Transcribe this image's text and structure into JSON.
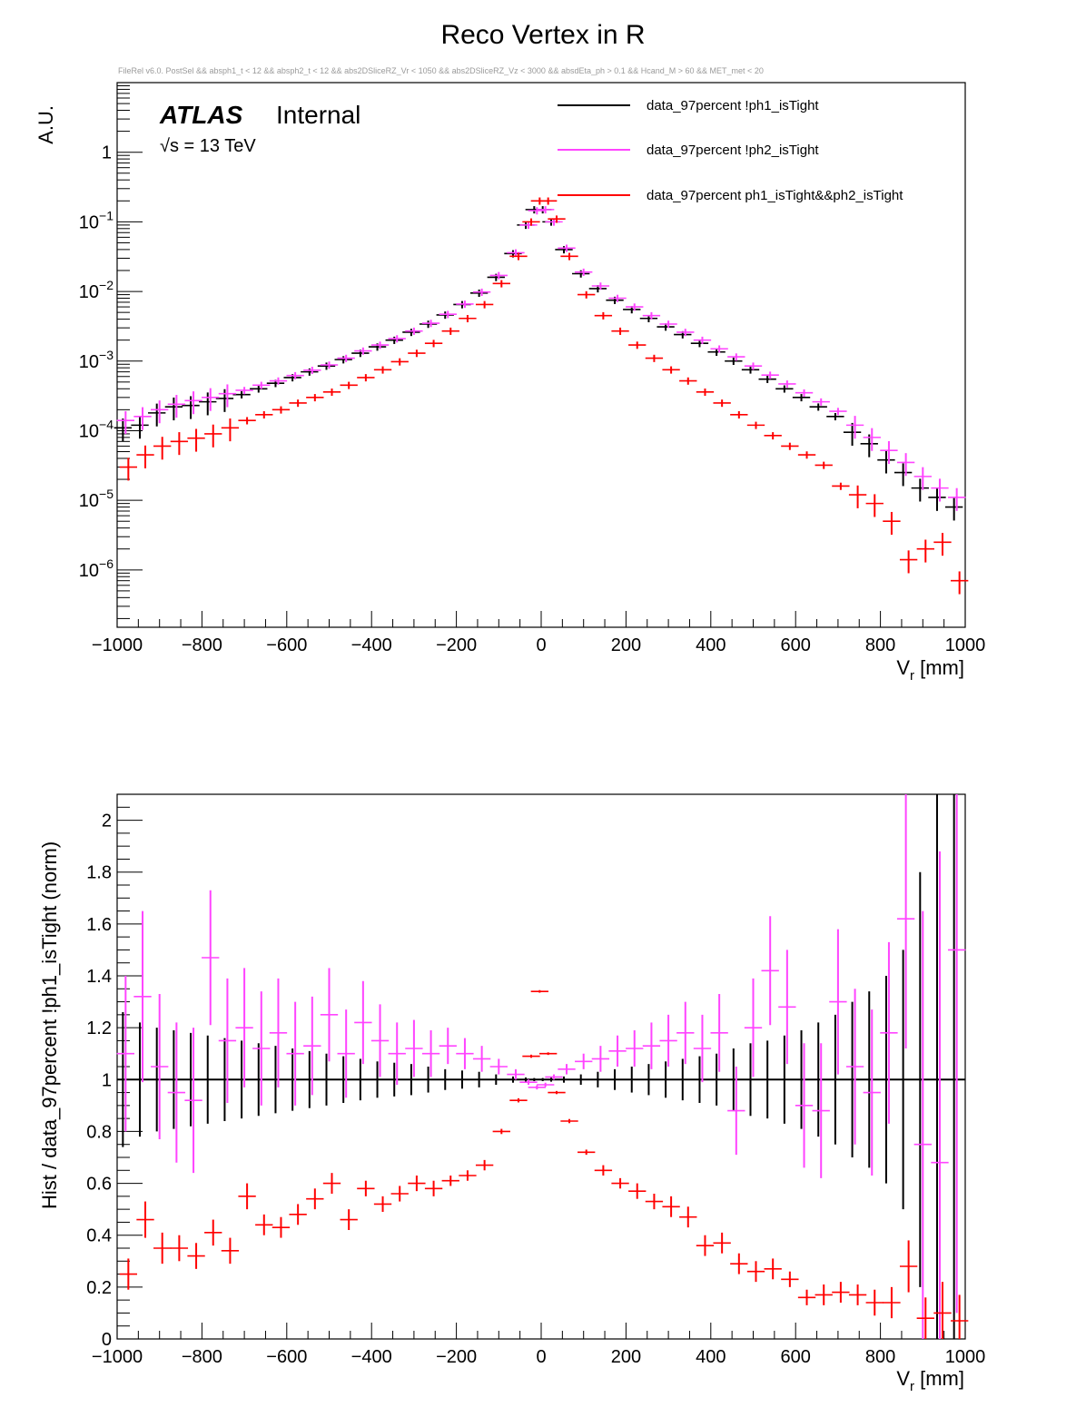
{
  "title": "Reco Vertex in R",
  "selection_text": "FileRel v6.0. PostSel &&  absph1_t < 12 && absph2_t < 12 && abs2DSliceRZ_Vr < 1050 && abs2DSliceRZ_Vz < 3000 && absdEta_ph > 0.1 && Hcand_M > 60 && MET_met < 20",
  "atlas_label": "ATLAS",
  "atlas_status": "Internal",
  "energy_label": "√s = 13 TeV",
  "colors": {
    "black": "#000000",
    "magenta": "#ff44ff",
    "red": "#ff0000"
  },
  "chart_data": [
    {
      "type": "scatter",
      "name": "top-panel",
      "xlabel": "V_r [mm]",
      "ylabel": "A.U.",
      "xlim": [
        -1000,
        1000
      ],
      "ylim": [
        1.5e-07,
        10
      ],
      "yscale": "log",
      "x_ticks": [
        -1000,
        -800,
        -600,
        -400,
        -200,
        0,
        200,
        400,
        600,
        800,
        1000
      ],
      "y_ticks": [
        {
          "value": 1,
          "label": "1"
        },
        {
          "value": 0.1,
          "label": "10",
          "exp": "−1"
        },
        {
          "value": 0.01,
          "label": "10",
          "exp": "−2"
        },
        {
          "value": 0.001,
          "label": "10",
          "exp": "−3"
        },
        {
          "value": 0.0001,
          "label": "10",
          "exp": "−4"
        },
        {
          "value": 1e-05,
          "label": "10",
          "exp": "−5"
        },
        {
          "value": 1e-06,
          "label": "10",
          "exp": "−6"
        }
      ],
      "legend": [
        {
          "label": "data_97percent !ph1_isTight",
          "color": "#000000"
        },
        {
          "label": "data_97percent !ph2_isTight",
          "color": "#ff44ff"
        },
        {
          "label": "data_97percent ph1_isTight&&ph2_isTight",
          "color": "#ff0000"
        }
      ],
      "series": [
        {
          "name": "data_97percent !ph1_isTight",
          "color": "#000000",
          "x": [
            -980,
            -940,
            -900,
            -860,
            -820,
            -780,
            -740,
            -700,
            -660,
            -620,
            -580,
            -540,
            -500,
            -460,
            -420,
            -380,
            -340,
            -300,
            -260,
            -220,
            -180,
            -140,
            -100,
            -60,
            -30,
            -10,
            10,
            30,
            60,
            100,
            140,
            180,
            220,
            260,
            300,
            340,
            380,
            420,
            460,
            500,
            540,
            580,
            620,
            660,
            700,
            740,
            780,
            820,
            860,
            900,
            940,
            980
          ],
          "y": [
            0.00011,
            0.00012,
            0.00018,
            0.00022,
            0.00023,
            0.00026,
            0.00029,
            0.00033,
            0.0004,
            0.00048,
            0.00058,
            0.0007,
            0.00085,
            0.00105,
            0.0013,
            0.0016,
            0.002,
            0.0026,
            0.0034,
            0.0046,
            0.0065,
            0.0095,
            0.016,
            0.035,
            0.09,
            0.15,
            0.15,
            0.1,
            0.04,
            0.018,
            0.011,
            0.0075,
            0.0055,
            0.0041,
            0.0031,
            0.0024,
            0.0018,
            0.00135,
            0.001,
            0.00075,
            0.00055,
            0.0004,
            0.0003,
            0.00022,
            0.00016,
            9.5e-05,
            6.5e-05,
            3.8e-05,
            2.5e-05,
            1.5e-05,
            1.1e-05,
            8e-06
          ]
        },
        {
          "name": "data_97percent !ph2_isTight",
          "color": "#ff44ff",
          "x": [
            -980,
            -940,
            -900,
            -860,
            -820,
            -780,
            -740,
            -700,
            -660,
            -620,
            -580,
            -540,
            -500,
            -460,
            -420,
            -380,
            -340,
            -300,
            -260,
            -220,
            -180,
            -140,
            -100,
            -60,
            -30,
            -10,
            10,
            30,
            60,
            100,
            140,
            180,
            220,
            260,
            300,
            340,
            380,
            420,
            460,
            500,
            540,
            580,
            620,
            660,
            700,
            740,
            780,
            820,
            860,
            900,
            940,
            980
          ],
          "y": [
            0.00014,
            0.00016,
            0.0002,
            0.00024,
            0.00027,
            0.0003,
            0.00034,
            0.00038,
            0.00045,
            0.00052,
            0.00062,
            0.00074,
            0.00088,
            0.0011,
            0.0014,
            0.0017,
            0.0021,
            0.0027,
            0.0035,
            0.0047,
            0.0066,
            0.0098,
            0.017,
            0.036,
            0.09,
            0.145,
            0.15,
            0.1,
            0.042,
            0.019,
            0.012,
            0.008,
            0.006,
            0.0045,
            0.0034,
            0.0026,
            0.002,
            0.0015,
            0.00115,
            0.00085,
            0.00063,
            0.00047,
            0.00035,
            0.00026,
            0.00019,
            0.00012,
            8e-05,
            5.2e-05,
            3.5e-05,
            2.2e-05,
            1.5e-05,
            1.1e-05
          ]
        },
        {
          "name": "data_97percent ph1_isTight&&ph2_isTight",
          "color": "#ff0000",
          "x": [
            -980,
            -940,
            -900,
            -860,
            -820,
            -780,
            -740,
            -700,
            -660,
            -620,
            -580,
            -540,
            -500,
            -460,
            -420,
            -380,
            -340,
            -300,
            -260,
            -220,
            -180,
            -140,
            -100,
            -60,
            -30,
            -10,
            10,
            30,
            60,
            100,
            140,
            180,
            220,
            260,
            300,
            340,
            380,
            420,
            460,
            500,
            540,
            580,
            620,
            660,
            700,
            740,
            780,
            820,
            860,
            900,
            940,
            980
          ],
          "y": [
            3e-05,
            4.5e-05,
            6e-05,
            7e-05,
            7.8e-05,
            9e-05,
            0.00011,
            0.00014,
            0.00017,
            0.0002,
            0.00025,
            0.0003,
            0.00036,
            0.00045,
            0.00058,
            0.00075,
            0.00098,
            0.0013,
            0.0018,
            0.0027,
            0.0041,
            0.0065,
            0.013,
            0.032,
            0.1,
            0.2,
            0.2,
            0.11,
            0.032,
            0.009,
            0.0045,
            0.0027,
            0.0017,
            0.0011,
            0.00075,
            0.00052,
            0.00036,
            0.00025,
            0.00017,
            0.00012,
            8.5e-05,
            6e-05,
            4.5e-05,
            3.2e-05,
            1.6e-05,
            1.2e-05,
            9e-06,
            5e-06,
            1.4e-06,
            2e-06,
            2.5e-06,
            7e-07
          ]
        }
      ]
    },
    {
      "type": "scatter",
      "name": "ratio-panel",
      "xlabel": "V_r [mm]",
      "ylabel": "Hist / data_97percent !ph1_isTight (norm)",
      "xlim": [
        -1000,
        1000
      ],
      "ylim": [
        0,
        2.1
      ],
      "x_ticks": [
        -1000,
        -800,
        -600,
        -400,
        -200,
        0,
        200,
        400,
        600,
        800,
        1000
      ],
      "y_ticks": [
        {
          "value": 0,
          "label": "0"
        },
        {
          "value": 0.2,
          "label": "0.2"
        },
        {
          "value": 0.4,
          "label": "0.4"
        },
        {
          "value": 0.6,
          "label": "0.6"
        },
        {
          "value": 0.8,
          "label": "0.8"
        },
        {
          "value": 1,
          "label": "1"
        },
        {
          "value": 1.2,
          "label": "1.2"
        },
        {
          "value": 1.4,
          "label": "1.4"
        },
        {
          "value": 1.6,
          "label": "1.6"
        },
        {
          "value": 1.8,
          "label": "1.8"
        },
        {
          "value": 2,
          "label": "2"
        }
      ],
      "series": [
        {
          "name": "data_97percent !ph1_isTight",
          "color": "#000000",
          "x": [
            -980,
            -940,
            -900,
            -860,
            -820,
            -780,
            -740,
            -700,
            -660,
            -620,
            -580,
            -540,
            -500,
            -460,
            -420,
            -380,
            -340,
            -300,
            -260,
            -220,
            -180,
            -140,
            -100,
            -60,
            -30,
            -10,
            10,
            30,
            60,
            100,
            140,
            180,
            220,
            260,
            300,
            340,
            380,
            420,
            460,
            500,
            540,
            580,
            620,
            660,
            700,
            740,
            780,
            820,
            860,
            900,
            940,
            980
          ],
          "y": [
            1,
            1,
            1,
            1,
            1,
            1,
            1,
            1,
            1,
            1,
            1,
            1,
            1,
            1,
            1,
            1,
            1,
            1,
            1,
            1,
            1,
            1,
            1,
            1,
            1,
            1,
            1,
            1,
            1,
            1,
            1,
            1,
            1,
            1,
            1,
            1,
            1,
            1,
            1,
            1,
            1,
            1,
            1,
            1,
            1,
            1,
            1,
            1,
            1,
            1,
            1,
            1
          ],
          "err": [
            0.26,
            0.22,
            0.2,
            0.19,
            0.18,
            0.17,
            0.16,
            0.15,
            0.14,
            0.13,
            0.12,
            0.11,
            0.1,
            0.09,
            0.08,
            0.07,
            0.065,
            0.06,
            0.05,
            0.04,
            0.035,
            0.03,
            0.02,
            0.012,
            0.008,
            0.006,
            0.006,
            0.008,
            0.012,
            0.02,
            0.03,
            0.04,
            0.05,
            0.06,
            0.07,
            0.08,
            0.09,
            0.1,
            0.12,
            0.14,
            0.15,
            0.17,
            0.19,
            0.22,
            0.25,
            0.3,
            0.34,
            0.4,
            0.5,
            0.8,
            1.1,
            1.2
          ]
        },
        {
          "name": "data_97percent !ph2_isTight",
          "color": "#ff44ff",
          "x": [
            -980,
            -940,
            -900,
            -860,
            -820,
            -780,
            -740,
            -700,
            -660,
            -620,
            -580,
            -540,
            -500,
            -460,
            -420,
            -380,
            -340,
            -300,
            -260,
            -220,
            -180,
            -140,
            -100,
            -60,
            -30,
            -10,
            10,
            30,
            60,
            100,
            140,
            180,
            220,
            260,
            300,
            340,
            380,
            420,
            460,
            500,
            540,
            580,
            620,
            660,
            700,
            740,
            780,
            820,
            860,
            900,
            940,
            980
          ],
          "y": [
            1.1,
            1.32,
            1.05,
            0.95,
            0.92,
            1.47,
            1.15,
            1.2,
            1.12,
            1.18,
            1.1,
            1.13,
            1.25,
            1.1,
            1.22,
            1.15,
            1.1,
            1.12,
            1.1,
            1.13,
            1.1,
            1.08,
            1.05,
            1.02,
            0.99,
            0.97,
            0.98,
            1.01,
            1.04,
            1.07,
            1.08,
            1.11,
            1.12,
            1.13,
            1.15,
            1.18,
            1.12,
            1.18,
            0.88,
            1.2,
            1.42,
            1.28,
            0.9,
            0.88,
            1.3,
            1.05,
            0.95,
            1.18,
            1.62,
            0.75,
            0.68,
            1.5
          ],
          "err": [
            0.3,
            0.33,
            0.28,
            0.27,
            0.28,
            0.26,
            0.24,
            0.23,
            0.22,
            0.21,
            0.2,
            0.19,
            0.18,
            0.17,
            0.16,
            0.14,
            0.12,
            0.11,
            0.09,
            0.07,
            0.06,
            0.05,
            0.03,
            0.02,
            0.01,
            0.008,
            0.008,
            0.01,
            0.02,
            0.03,
            0.05,
            0.06,
            0.07,
            0.09,
            0.1,
            0.12,
            0.13,
            0.15,
            0.17,
            0.19,
            0.21,
            0.22,
            0.24,
            0.26,
            0.28,
            0.3,
            0.32,
            0.35,
            0.5,
            0.9,
            1.2,
            1.4
          ]
        },
        {
          "name": "data_97percent ph1_isTight&&ph2_isTight",
          "color": "#ff0000",
          "x": [
            -980,
            -940,
            -900,
            -860,
            -820,
            -780,
            -740,
            -700,
            -660,
            -620,
            -580,
            -540,
            -500,
            -460,
            -420,
            -380,
            -340,
            -300,
            -260,
            -220,
            -180,
            -140,
            -100,
            -60,
            -30,
            -10,
            10,
            30,
            60,
            100,
            140,
            180,
            220,
            260,
            300,
            340,
            380,
            420,
            460,
            500,
            540,
            580,
            620,
            660,
            700,
            740,
            780,
            820,
            860,
            900,
            940,
            980
          ],
          "y": [
            0.25,
            0.46,
            0.35,
            0.35,
            0.32,
            0.41,
            0.34,
            0.55,
            0.44,
            0.43,
            0.48,
            0.54,
            0.6,
            0.46,
            0.58,
            0.52,
            0.56,
            0.6,
            0.58,
            0.61,
            0.63,
            0.67,
            0.8,
            0.92,
            1.09,
            1.34,
            1.1,
            0.95,
            0.84,
            0.72,
            0.65,
            0.6,
            0.57,
            0.53,
            0.51,
            0.47,
            0.36,
            0.37,
            0.29,
            0.26,
            0.27,
            0.23,
            0.16,
            0.17,
            0.18,
            0.17,
            0.14,
            0.14,
            0.28,
            0.08,
            0.1,
            0.07
          ],
          "err": [
            0.06,
            0.07,
            0.06,
            0.05,
            0.05,
            0.05,
            0.05,
            0.05,
            0.04,
            0.04,
            0.04,
            0.04,
            0.04,
            0.04,
            0.03,
            0.03,
            0.03,
            0.03,
            0.03,
            0.02,
            0.02,
            0.02,
            0.01,
            0.008,
            0.006,
            0.005,
            0.005,
            0.006,
            0.008,
            0.01,
            0.02,
            0.02,
            0.03,
            0.03,
            0.04,
            0.04,
            0.04,
            0.04,
            0.04,
            0.04,
            0.04,
            0.03,
            0.03,
            0.04,
            0.04,
            0.04,
            0.05,
            0.06,
            0.1,
            0.08,
            0.12,
            0.1
          ]
        }
      ]
    }
  ]
}
